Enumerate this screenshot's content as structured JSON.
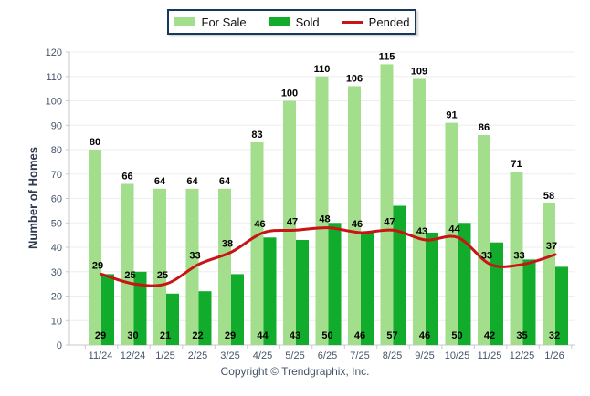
{
  "chart_data": {
    "type": "bar",
    "subtype": "grouped-bars-with-line-overlay",
    "categories": [
      "11/24",
      "12/24",
      "1/25",
      "2/25",
      "3/25",
      "4/25",
      "5/25",
      "6/25",
      "7/25",
      "8/25",
      "9/25",
      "10/25",
      "11/25",
      "12/25",
      "1/26"
    ],
    "series": [
      {
        "name": "For Sale",
        "type": "bar",
        "color": "#A3DE8D",
        "values": [
          80,
          66,
          64,
          64,
          64,
          83,
          100,
          110,
          106,
          115,
          109,
          91,
          86,
          71,
          58
        ]
      },
      {
        "name": "Sold",
        "type": "bar",
        "color": "#11AC2B",
        "values": [
          29,
          30,
          21,
          22,
          29,
          44,
          43,
          50,
          46,
          57,
          46,
          50,
          42,
          35,
          32
        ]
      },
      {
        "name": "Pended",
        "type": "line",
        "color": "#C81414",
        "values": [
          29,
          25,
          25,
          33,
          38,
          46,
          47,
          48,
          46,
          47,
          43,
          44,
          33,
          33,
          37
        ]
      }
    ],
    "xlabel": "",
    "ylabel": "Number of Homes",
    "ylim": [
      0,
      120
    ],
    "ytick_step": 10,
    "grid": true,
    "legend_position": "top-center"
  },
  "colors": {
    "grid": "#EDEDED",
    "axis": "#C9C9C9",
    "tick_text": "#44546A",
    "bar_label": "#000000",
    "legend_border": "#17375D"
  },
  "footer": {
    "copyright": "Copyright © Trendgraphix, Inc."
  }
}
